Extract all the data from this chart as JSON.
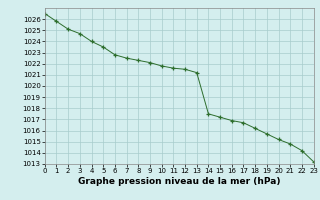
{
  "x": [
    0,
    1,
    2,
    3,
    4,
    5,
    6,
    7,
    8,
    9,
    10,
    11,
    12,
    13,
    14,
    15,
    16,
    17,
    18,
    19,
    20,
    21,
    22,
    23
  ],
  "y": [
    1026.5,
    1025.8,
    1025.1,
    1024.7,
    1024.0,
    1023.5,
    1022.8,
    1022.5,
    1022.3,
    1022.1,
    1021.8,
    1021.6,
    1021.5,
    1021.2,
    1017.5,
    1017.2,
    1016.9,
    1016.7,
    1016.2,
    1015.7,
    1015.2,
    1014.8,
    1014.2,
    1013.2
  ],
  "xlim": [
    0,
    23
  ],
  "ylim": [
    1013,
    1027
  ],
  "yticks": [
    1013,
    1014,
    1015,
    1016,
    1017,
    1018,
    1019,
    1020,
    1021,
    1022,
    1023,
    1024,
    1025,
    1026
  ],
  "xticks": [
    0,
    1,
    2,
    3,
    4,
    5,
    6,
    7,
    8,
    9,
    10,
    11,
    12,
    13,
    14,
    15,
    16,
    17,
    18,
    19,
    20,
    21,
    22,
    23
  ],
  "line_color": "#2d6e2d",
  "marker_color": "#2d6e2d",
  "bg_color": "#d4eeee",
  "grid_color": "#a8cccc",
  "xlabel": "Graphe pression niveau de la mer (hPa)",
  "xlabel_fontsize": 6.5,
  "tick_fontsize": 5.0
}
